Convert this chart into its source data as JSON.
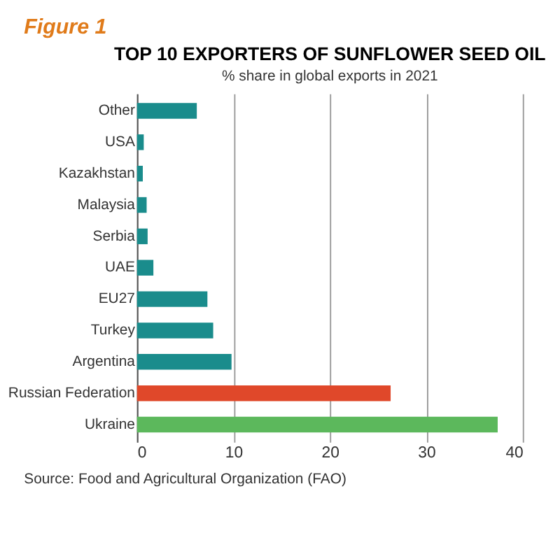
{
  "chart_data": {
    "type": "bar",
    "orientation": "horizontal",
    "title": "TOP 10 EXPORTERS OF SUNFLOWER SEED OIL",
    "subtitle": "% share in global exports in 2021",
    "categories": [
      "Other",
      "USA",
      "Kazakhstan",
      "Malaysia",
      "Serbia",
      "UAE",
      "EU27",
      "Turkey",
      "Argentina",
      "Russian Federation",
      "Ukraine"
    ],
    "values": [
      6.2,
      0.7,
      0.6,
      1.0,
      1.1,
      1.7,
      7.3,
      7.9,
      9.8,
      26.3,
      37.4
    ],
    "colors": [
      "#1a8c8c",
      "#1a8c8c",
      "#1a8c8c",
      "#1a8c8c",
      "#1a8c8c",
      "#1a8c8c",
      "#1a8c8c",
      "#1a8c8c",
      "#1a8c8c",
      "#e0482a",
      "#5cb85c"
    ],
    "xlim": [
      0,
      40
    ],
    "xticks": [
      0,
      10,
      20,
      30,
      40
    ],
    "grid": "x",
    "annotations": [
      "Figure 1",
      "Source: Food and Agricultural Organization (FAO)"
    ]
  }
}
